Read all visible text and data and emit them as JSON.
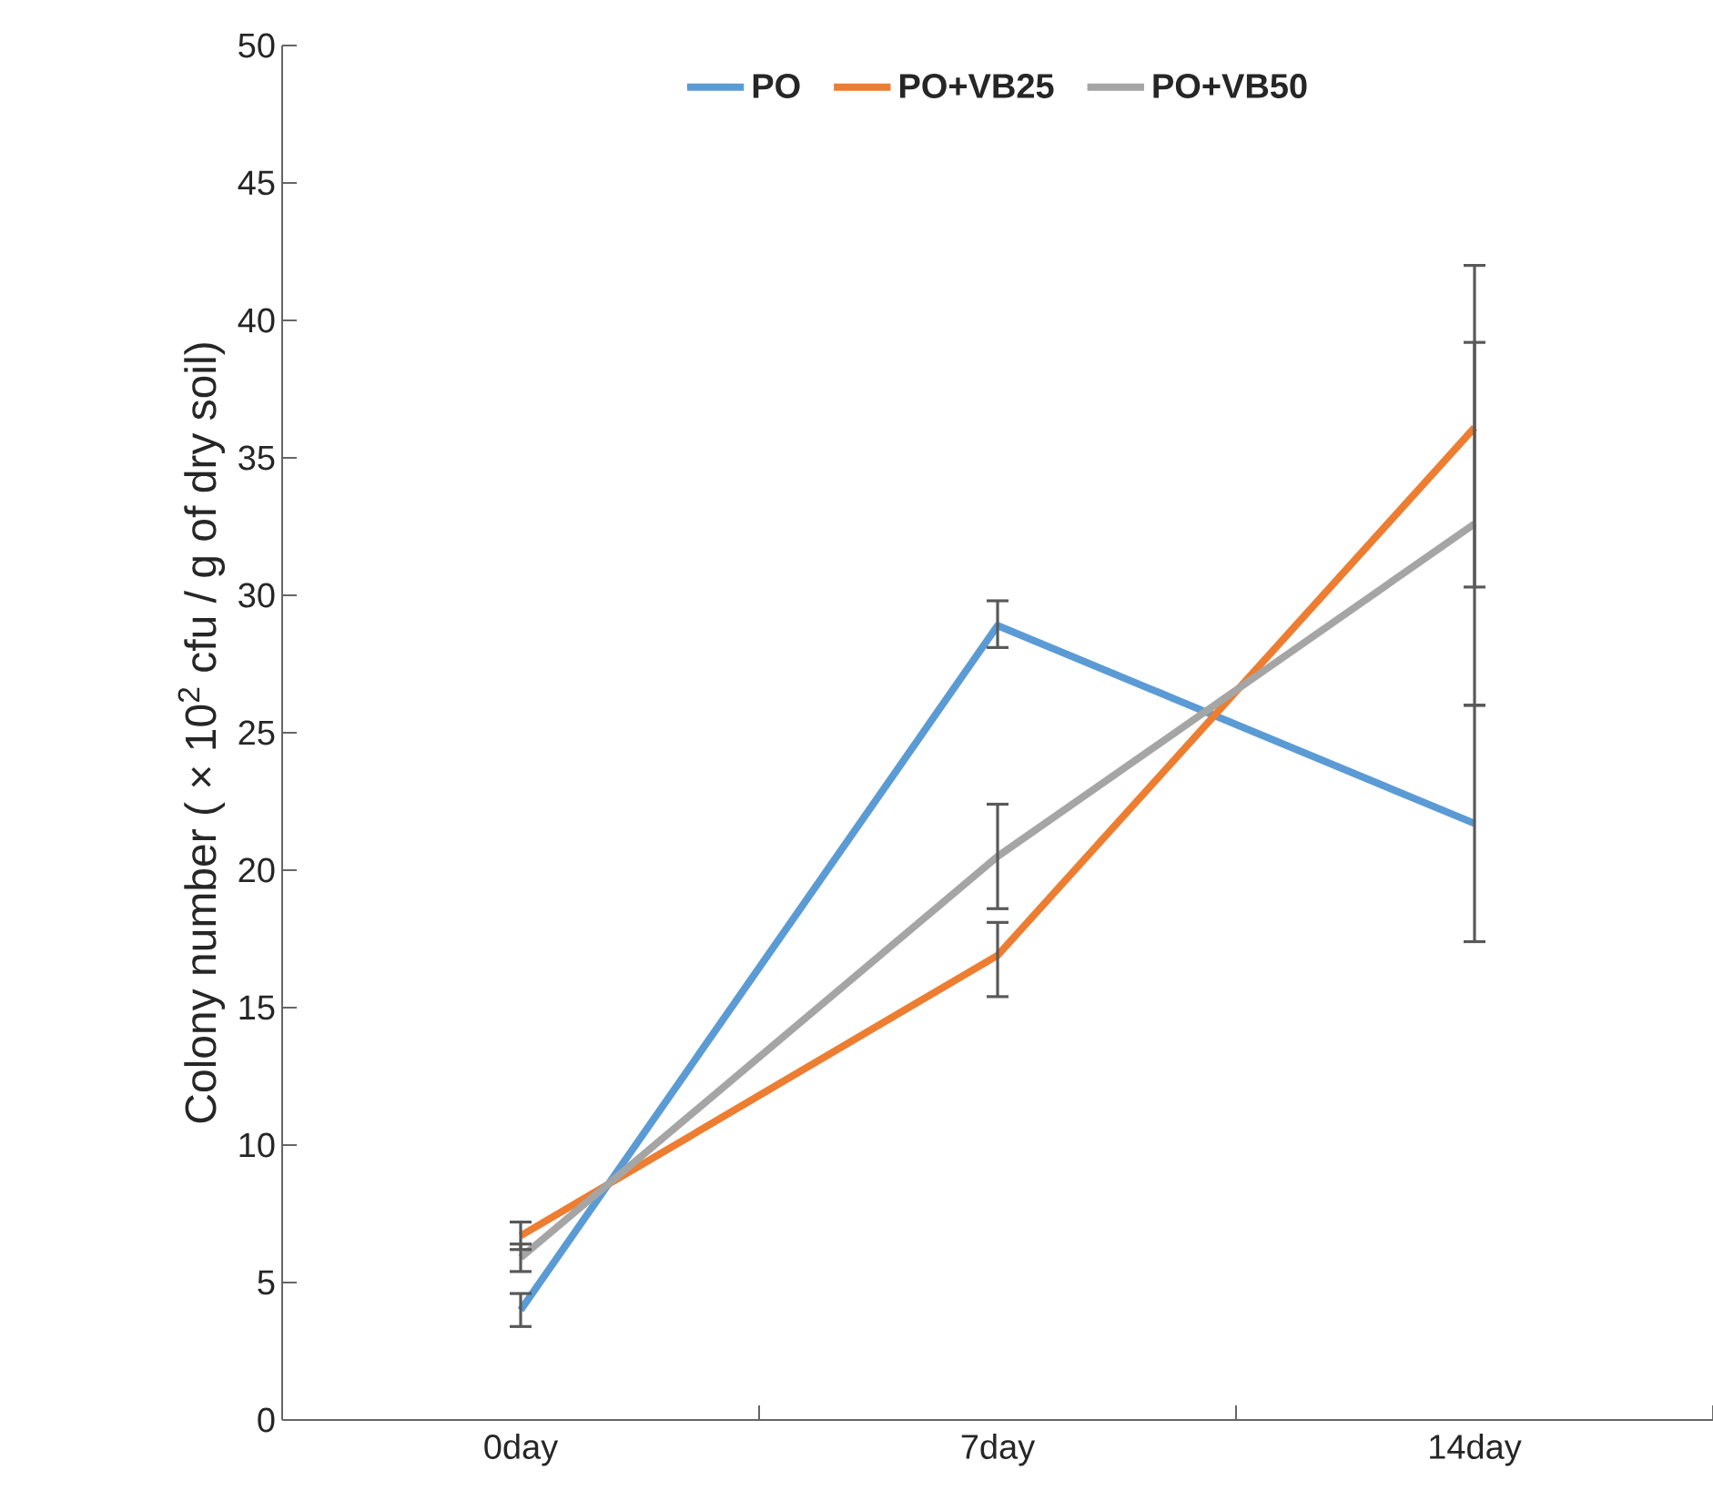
{
  "chart_data": {
    "type": "line",
    "ylabel": "Colony number ( × 10$^{2}$ cfu / g of dry soil)",
    "categories": [
      "0day",
      "7day",
      "14day"
    ],
    "ylim": [
      0,
      50
    ],
    "yticks": [
      0,
      5,
      10,
      15,
      20,
      25,
      30,
      35,
      40,
      45,
      50
    ],
    "grid": false,
    "legend": "top",
    "marker": "none",
    "line_style": "solid",
    "series": [
      {
        "name": "PO",
        "color": "#5b9bd5",
        "values": [
          4.0,
          28.9,
          21.7
        ],
        "errors": [
          [
            3.4,
            4.6
          ],
          [
            28.1,
            29.8
          ],
          [
            17.4,
            26.0
          ]
        ]
      },
      {
        "name": "PO+VB25",
        "color": "#ed7d31",
        "values": [
          6.7,
          16.9,
          36.1
        ],
        "errors": [
          [
            6.2,
            7.2
          ],
          [
            15.4,
            18.1
          ],
          [
            30.3,
            42.0
          ]
        ]
      },
      {
        "name": "PO+VB50",
        "color": "#a5a5a5",
        "values": [
          5.9,
          20.5,
          32.6
        ],
        "errors": [
          [
            5.4,
            6.4
          ],
          [
            18.6,
            22.4
          ],
          [
            26.0,
            39.2
          ]
        ]
      }
    ]
  }
}
